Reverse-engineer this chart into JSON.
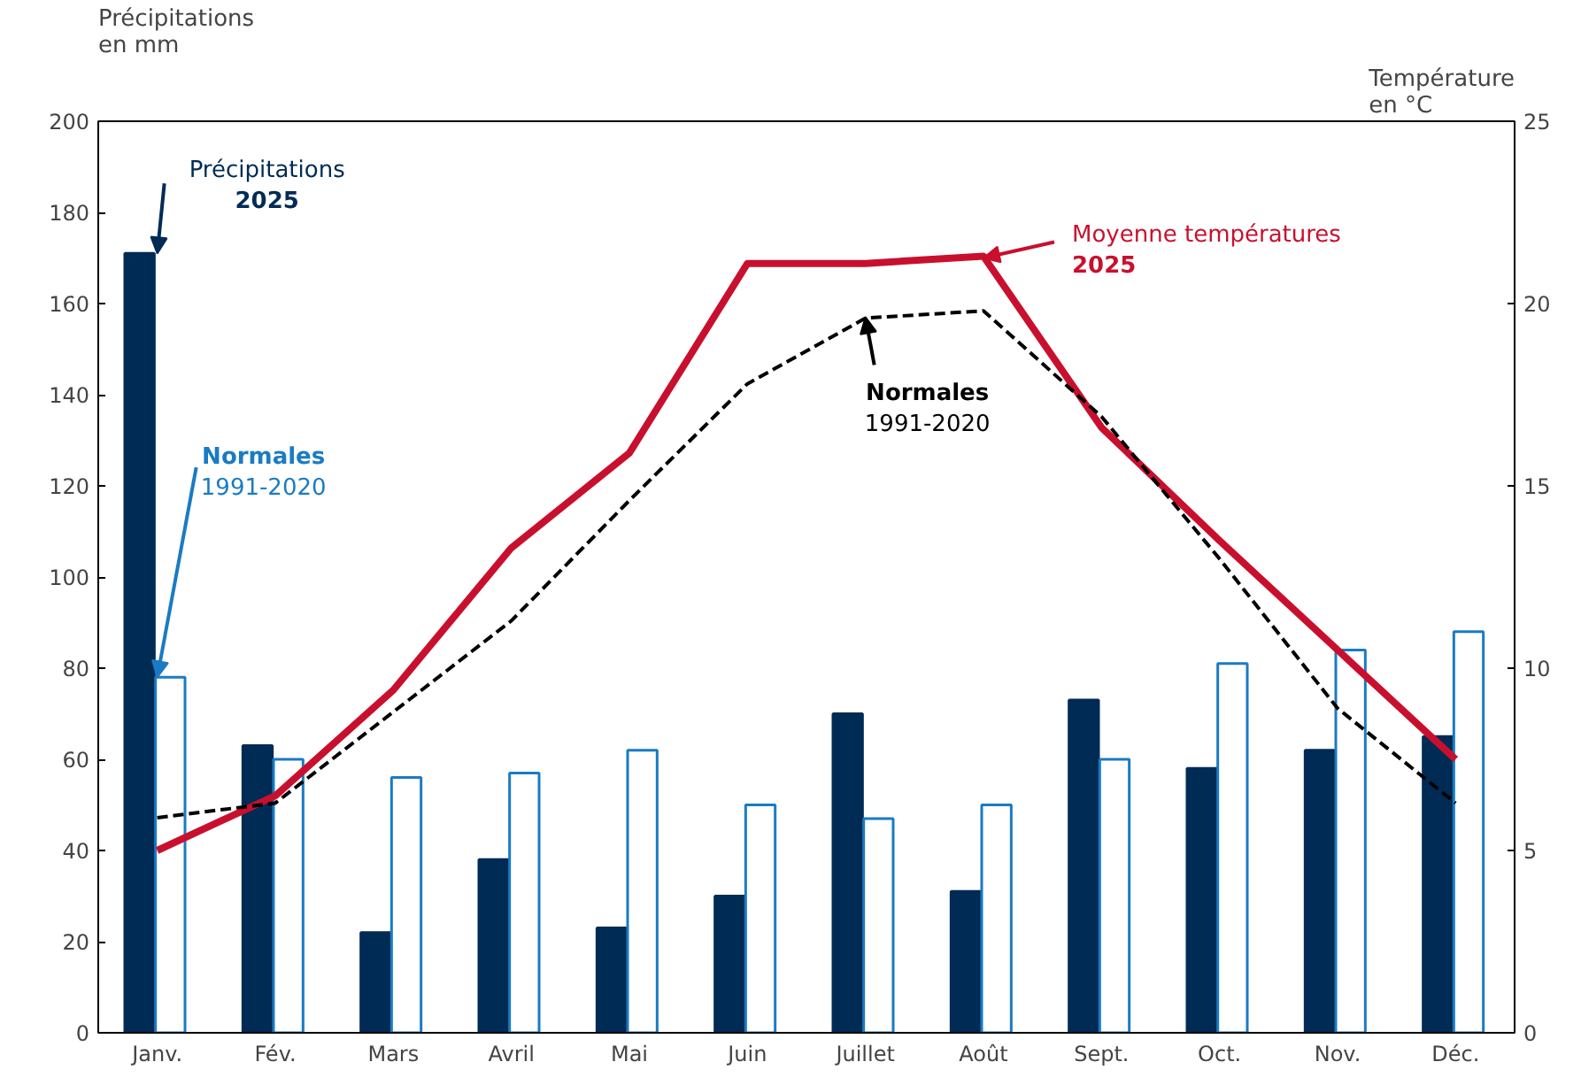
{
  "chart_data": {
    "type": "bar",
    "ylabel": "Précipitations\nen mm",
    "y2label": "Température\nen °C",
    "categories": [
      "Janv.",
      "Fév.",
      "Mars",
      "Avril",
      "Mai",
      "Juin",
      "Juillet",
      "Août",
      "Sept.",
      "Oct.",
      "Nov.",
      "Déc."
    ],
    "series": [
      {
        "color": "#002b55",
        "values": [
          171,
          63,
          22,
          38,
          23,
          30,
          70,
          31,
          73,
          58,
          62,
          65
        ]
      },
      {
        "color": "#1a7bc4",
        "values": [
          78,
          60,
          56,
          57,
          62,
          50,
          47,
          50,
          60,
          81,
          84,
          88
        ]
      },
      {
        "type": "line",
        "axis": "y2",
        "color": "#c8102e",
        "line_style": "solid",
        "values": [
          5.0,
          6.5,
          9.4,
          13.3,
          15.9,
          21.1,
          21.1,
          21.3,
          16.6,
          13.5,
          10.5,
          7.5
        ]
      },
      {
        "type": "line",
        "axis": "y2",
        "color": "#000000",
        "line_style": "dashed",
        "values": [
          5.9,
          6.3,
          8.8,
          11.3,
          14.6,
          17.8,
          19.6,
          19.8,
          16.9,
          13.0,
          8.9,
          6.3
        ]
      }
    ],
    "annotations": [
      {
        "text": "Précipitations\n2025",
        "x": "Janv.",
        "y": 171
      },
      {
        "text": "Normales\n1991-2020",
        "x": "Janv.",
        "y": 78
      },
      {
        "text": "Moyenne températures\n2025",
        "x": "Août",
        "y": 170
      },
      {
        "text": "Normales\n1991-2020",
        "x": "Juillet",
        "y": 157
      }
    ],
    "ylim": [
      0,
      200
    ],
    "yticks": [
      0,
      20,
      40,
      60,
      80,
      100,
      120,
      140,
      160,
      180,
      200
    ],
    "y2lim": [
      0,
      25
    ],
    "y2ticks": [
      0,
      5,
      10,
      15,
      20,
      25
    ],
    "grid": false
  }
}
